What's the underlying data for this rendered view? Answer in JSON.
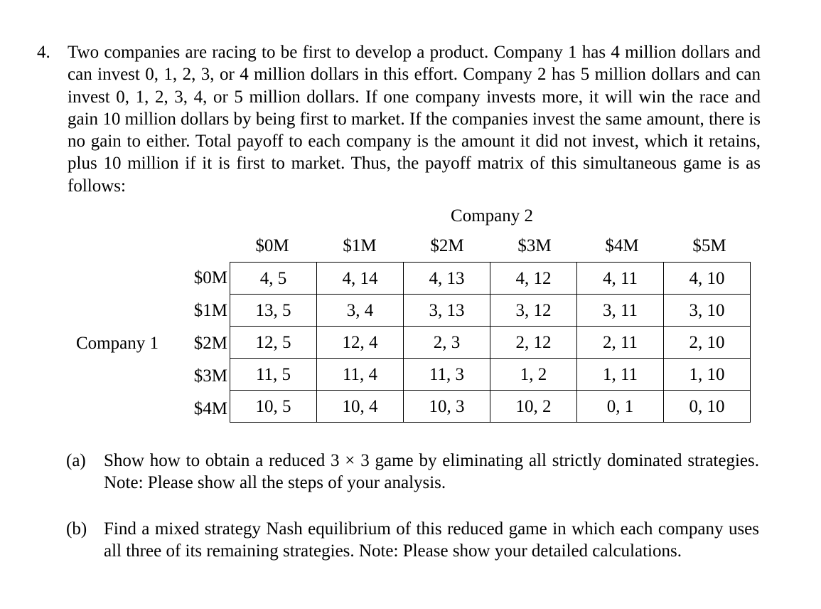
{
  "problem": {
    "number": "4.",
    "lines": [
      "Two companies are racing to be first to develop a product. Company 1 has 4 million dollars",
      "and can invest 0, 1, 2, 3, or 4 million dollars in this effort. Company 2 has 5 million dollars",
      "and can invest 0, 1, 2, 3, 4, or 5 million dollars. If one company invests more, it will win",
      "the race and gain 10 million dollars by being first to market. If the companies invest the",
      "same amount, there is no gain to either. Total payoff to each company is the amount it did",
      "not invest, which it retains, plus 10 million if it is first to market. Thus, the payoff matrix",
      "of this simultaneous game is as follows:"
    ]
  },
  "matrix": {
    "column_player": "Company 2",
    "row_player": "Company 1",
    "columns": [
      "$0M",
      "$1M",
      "$2M",
      "$3M",
      "$4M",
      "$5M"
    ],
    "rows": [
      {
        "label": "$0M",
        "cells": [
          "4, 5",
          "4, 14",
          "4, 13",
          "4, 12",
          "4, 11",
          "4, 10"
        ]
      },
      {
        "label": "$1M",
        "cells": [
          "13, 5",
          "3, 4",
          "3, 13",
          "3, 12",
          "3, 11",
          "3, 10"
        ]
      },
      {
        "label": "$2M",
        "cells": [
          "12, 5",
          "12, 4",
          "2, 3",
          "2, 12",
          "2, 11",
          "2, 10"
        ]
      },
      {
        "label": "$3M",
        "cells": [
          "11, 5",
          "11, 4",
          "11, 3",
          "1, 2",
          "1, 11",
          "1, 10"
        ]
      },
      {
        "label": "$4M",
        "cells": [
          "10, 5",
          "10, 4",
          "10, 3",
          "10, 2",
          "0, 1",
          "0, 10"
        ]
      }
    ]
  },
  "parts": [
    {
      "label": "(a)",
      "lines": [
        "Show how to obtain a reduced 3 × 3 game by eliminating all strictly dominated",
        "strategies. Note: Please show all the steps of your analysis."
      ]
    },
    {
      "label": "(b)",
      "lines": [
        "Find a mixed strategy Nash equilibrium of this reduced game in which each company",
        "uses all three of its remaining strategies. Note: Please show your detailed calculations."
      ]
    }
  ]
}
